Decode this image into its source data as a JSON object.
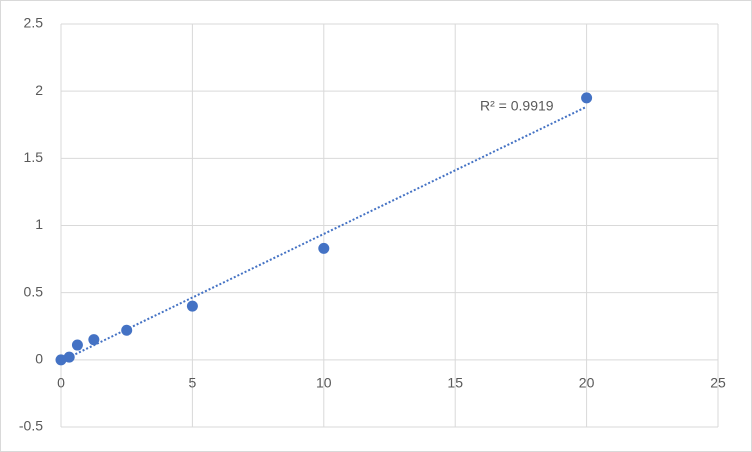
{
  "chart_data": {
    "type": "scatter",
    "x": [
      0,
      0.3125,
      0.625,
      1.25,
      2.5,
      5,
      10,
      20
    ],
    "series": [
      {
        "color": "#4472c4",
        "values": [
          0,
          0.02,
          0.11,
          0.15,
          0.22,
          0.4,
          0.83,
          1.95
        ]
      }
    ],
    "trendline": "linear",
    "annotation": "R² = 0.9919",
    "xlim": [
      0,
      25
    ],
    "xticks": [
      0,
      5,
      10,
      15,
      20,
      25
    ],
    "ylim": [
      -0.5,
      2.5
    ],
    "yticks": [
      -0.5,
      0,
      0.5,
      1,
      1.5,
      2,
      2.5
    ],
    "grid": true
  }
}
